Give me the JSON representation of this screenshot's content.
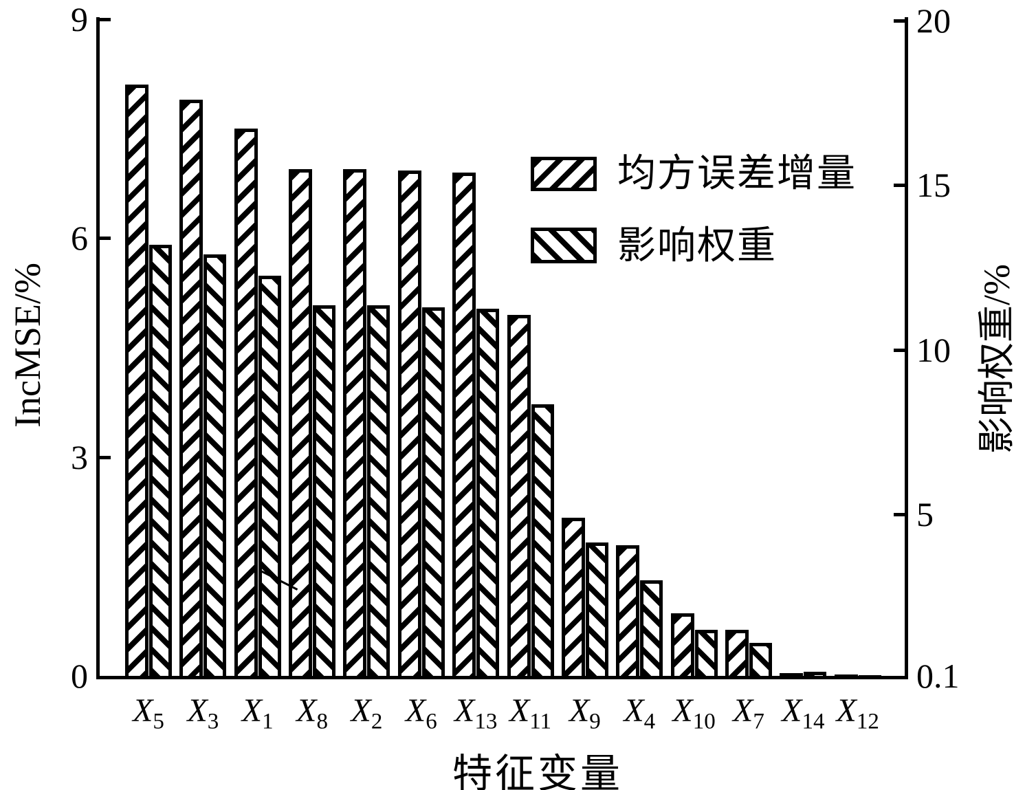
{
  "chart_data": {
    "type": "bar",
    "title": "",
    "xlabel": "特征变量",
    "grid": false,
    "colors": {
      "foreground": "#000000",
      "background": "#ffffff"
    },
    "categories": [
      {
        "var": "X",
        "sub": "5"
      },
      {
        "var": "X",
        "sub": "3"
      },
      {
        "var": "X",
        "sub": "1"
      },
      {
        "var": "X",
        "sub": "8"
      },
      {
        "var": "X",
        "sub": "2"
      },
      {
        "var": "X",
        "sub": "6"
      },
      {
        "var": "X",
        "sub": "13"
      },
      {
        "var": "X",
        "sub": "11"
      },
      {
        "var": "X",
        "sub": "9"
      },
      {
        "var": "X",
        "sub": "4"
      },
      {
        "var": "X",
        "sub": "10"
      },
      {
        "var": "X",
        "sub": "7"
      },
      {
        "var": "X",
        "sub": "14"
      },
      {
        "var": "X",
        "sub": "12"
      }
    ],
    "series": [
      {
        "name": "均方误差增量",
        "axis": "left",
        "hatch": "forward-diagonal",
        "values": [
          8.1,
          7.9,
          7.5,
          6.95,
          6.95,
          6.93,
          6.9,
          4.95,
          2.17,
          1.79,
          0.86,
          0.63,
          0.04,
          0.02
        ]
      },
      {
        "name": "影响权重",
        "axis": "right",
        "hatch": "backward-diagonal",
        "values": [
          13.2,
          12.9,
          12.25,
          11.35,
          11.35,
          11.3,
          11.25,
          8.35,
          4.15,
          3.0,
          1.5,
          1.1,
          0.22,
          0.12
        ]
      }
    ],
    "left_axis": {
      "label": "IncMSE/%",
      "ticks": [
        "9",
        "6",
        "3",
        "0"
      ],
      "tick_values": [
        9,
        6,
        3,
        0
      ],
      "range": [
        0,
        9
      ]
    },
    "right_axis": {
      "label": "影响权重/%",
      "ticks": [
        "20",
        "15",
        "10",
        "5",
        "0.1"
      ],
      "tick_values": [
        20,
        15,
        10,
        5,
        0.1
      ],
      "range": [
        0.1,
        20
      ]
    },
    "legend": {
      "position": "upper-right-inside",
      "items": [
        {
          "label": "均方误差增量",
          "hatch": "forward-diagonal"
        },
        {
          "label": "影响权重",
          "hatch": "backward-diagonal"
        }
      ]
    }
  }
}
